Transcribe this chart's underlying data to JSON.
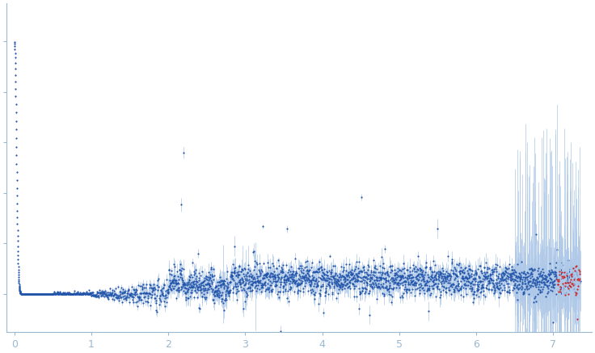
{
  "background_color": "#ffffff",
  "dot_color": "#2255aa",
  "dot_color_red": "#cc2222",
  "error_color": "#aec8e8",
  "dot_size": 2.5,
  "figsize": [
    7.36,
    4.37
  ],
  "dpi": 100,
  "spine_color": "#9ab8d0",
  "tick_color": "#9ab8d0",
  "xlim": [
    -0.1,
    7.5
  ],
  "ylim": [
    -0.15,
    1.15
  ],
  "x_ticks": [
    0,
    1,
    2,
    3,
    4,
    5,
    6,
    7
  ]
}
